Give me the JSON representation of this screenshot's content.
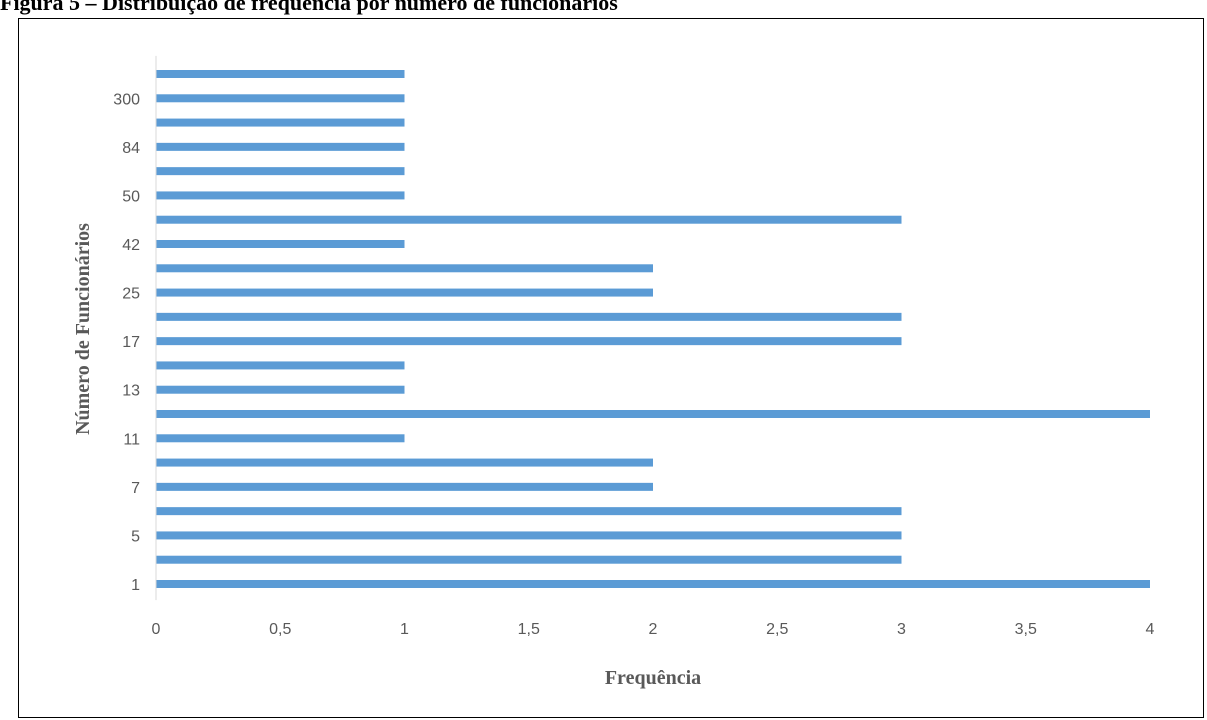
{
  "figure_caption": "Figura 5 – Distribuição de frequência por número de funcionários",
  "chart_data": {
    "type": "bar",
    "orientation": "horizontal",
    "title": "",
    "xlabel": "Frequência",
    "ylabel": "Número de Funcionários",
    "xlim": [
      0,
      4
    ],
    "x_ticks": [
      "0",
      "0,5",
      "1",
      "1,5",
      "2",
      "2,5",
      "3",
      "3,5",
      "4"
    ],
    "category_labels": [
      "1",
      "",
      "5",
      "",
      "7",
      "",
      "11",
      "",
      "13",
      "",
      "17",
      "",
      "25",
      "",
      "42",
      "",
      "50",
      "",
      "84",
      "",
      "300",
      ""
    ],
    "values": [
      4,
      3,
      3,
      3,
      2,
      2,
      1,
      4,
      1,
      1,
      3,
      3,
      2,
      2,
      1,
      3,
      1,
      1,
      1,
      1,
      1,
      1
    ],
    "bar_color": "#5B9BD5",
    "grid": false
  }
}
